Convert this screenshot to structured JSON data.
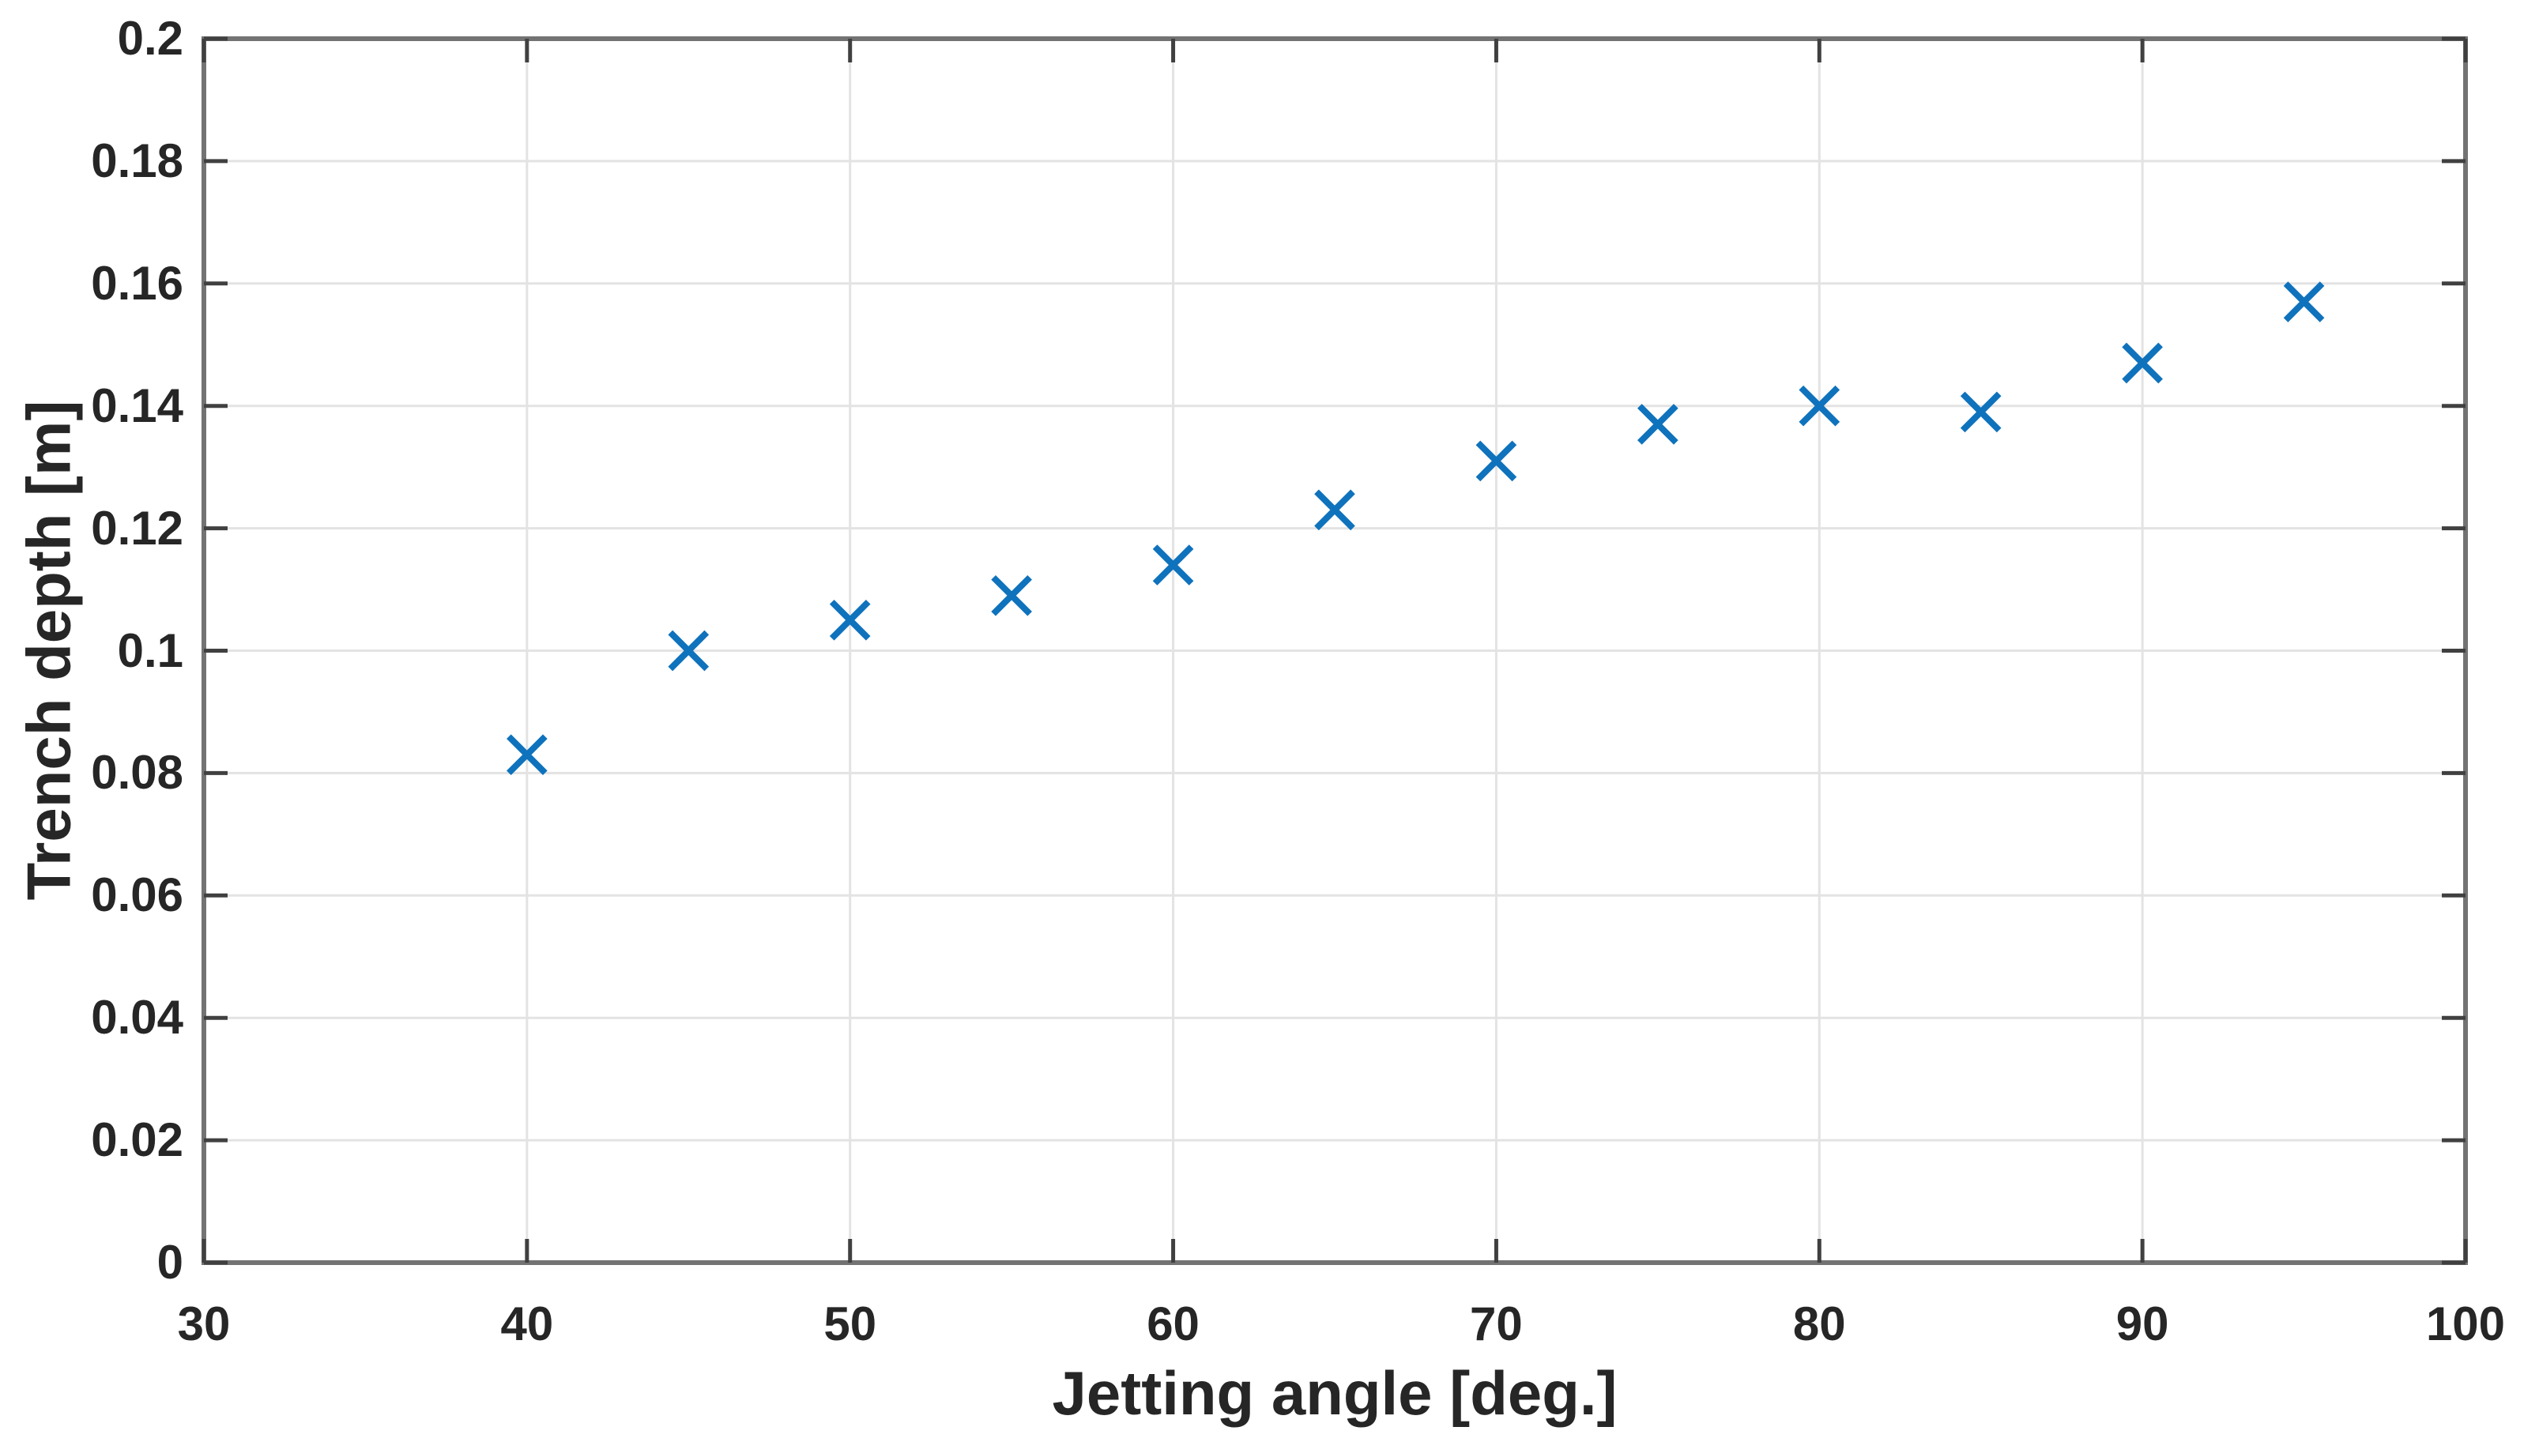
{
  "chart_data": {
    "type": "scatter",
    "title": "",
    "xlabel": "Jetting angle [deg.]",
    "ylabel": "Trench depth [m]",
    "x": [
      40,
      45,
      50,
      55,
      60,
      65,
      70,
      75,
      80,
      85,
      90,
      95
    ],
    "y": [
      0.083,
      0.1,
      0.105,
      0.109,
      0.114,
      0.123,
      0.131,
      0.137,
      0.14,
      0.139,
      0.147,
      0.157
    ],
    "xlim": [
      30,
      100
    ],
    "ylim": [
      0,
      0.2
    ],
    "xticks": [
      30,
      40,
      50,
      60,
      70,
      80,
      90,
      100
    ],
    "xtick_labels": [
      "30",
      "40",
      "50",
      "60",
      "70",
      "80",
      "90",
      "100"
    ],
    "yticks": [
      0,
      0.02,
      0.04,
      0.06,
      0.08,
      0.1,
      0.12,
      0.14,
      0.16,
      0.18,
      0.2
    ],
    "ytick_labels": [
      "0",
      "0.02",
      "0.04",
      "0.06",
      "0.08",
      "0.1",
      "0.12",
      "0.14",
      "0.16",
      "0.18",
      "0.2"
    ],
    "grid": true,
    "legend": "none",
    "marker": {
      "style": "x",
      "color": "#0F72BC",
      "size": 46,
      "stroke_width": 8
    },
    "colors": {
      "background": "#FFFFFF",
      "axis_box": "#737373",
      "grid": "#E3E3E3",
      "tick": "#404040",
      "text": "#262626"
    }
  }
}
